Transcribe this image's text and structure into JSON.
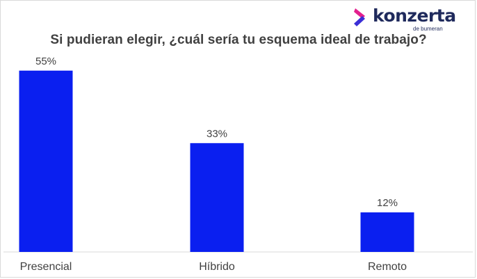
{
  "logo": {
    "brand": "konzerta",
    "sub": "de bumeran",
    "colors": {
      "arrow_top": "#e2208e",
      "arrow_bottom": "#3b2fd6",
      "text": "#1f2a5c"
    }
  },
  "chart_data": {
    "type": "bar",
    "title": "Si pudieran elegir, ¿cuál sería tu esquema ideal de trabajo?",
    "categories": [
      "Presencial",
      "Híbrido",
      "Remoto"
    ],
    "values": [
      55,
      33,
      12
    ],
    "value_labels": [
      "55%",
      "33%",
      "12%"
    ],
    "ylim": [
      0,
      60
    ],
    "grid": false,
    "bar_color": "#0a1ff0"
  }
}
